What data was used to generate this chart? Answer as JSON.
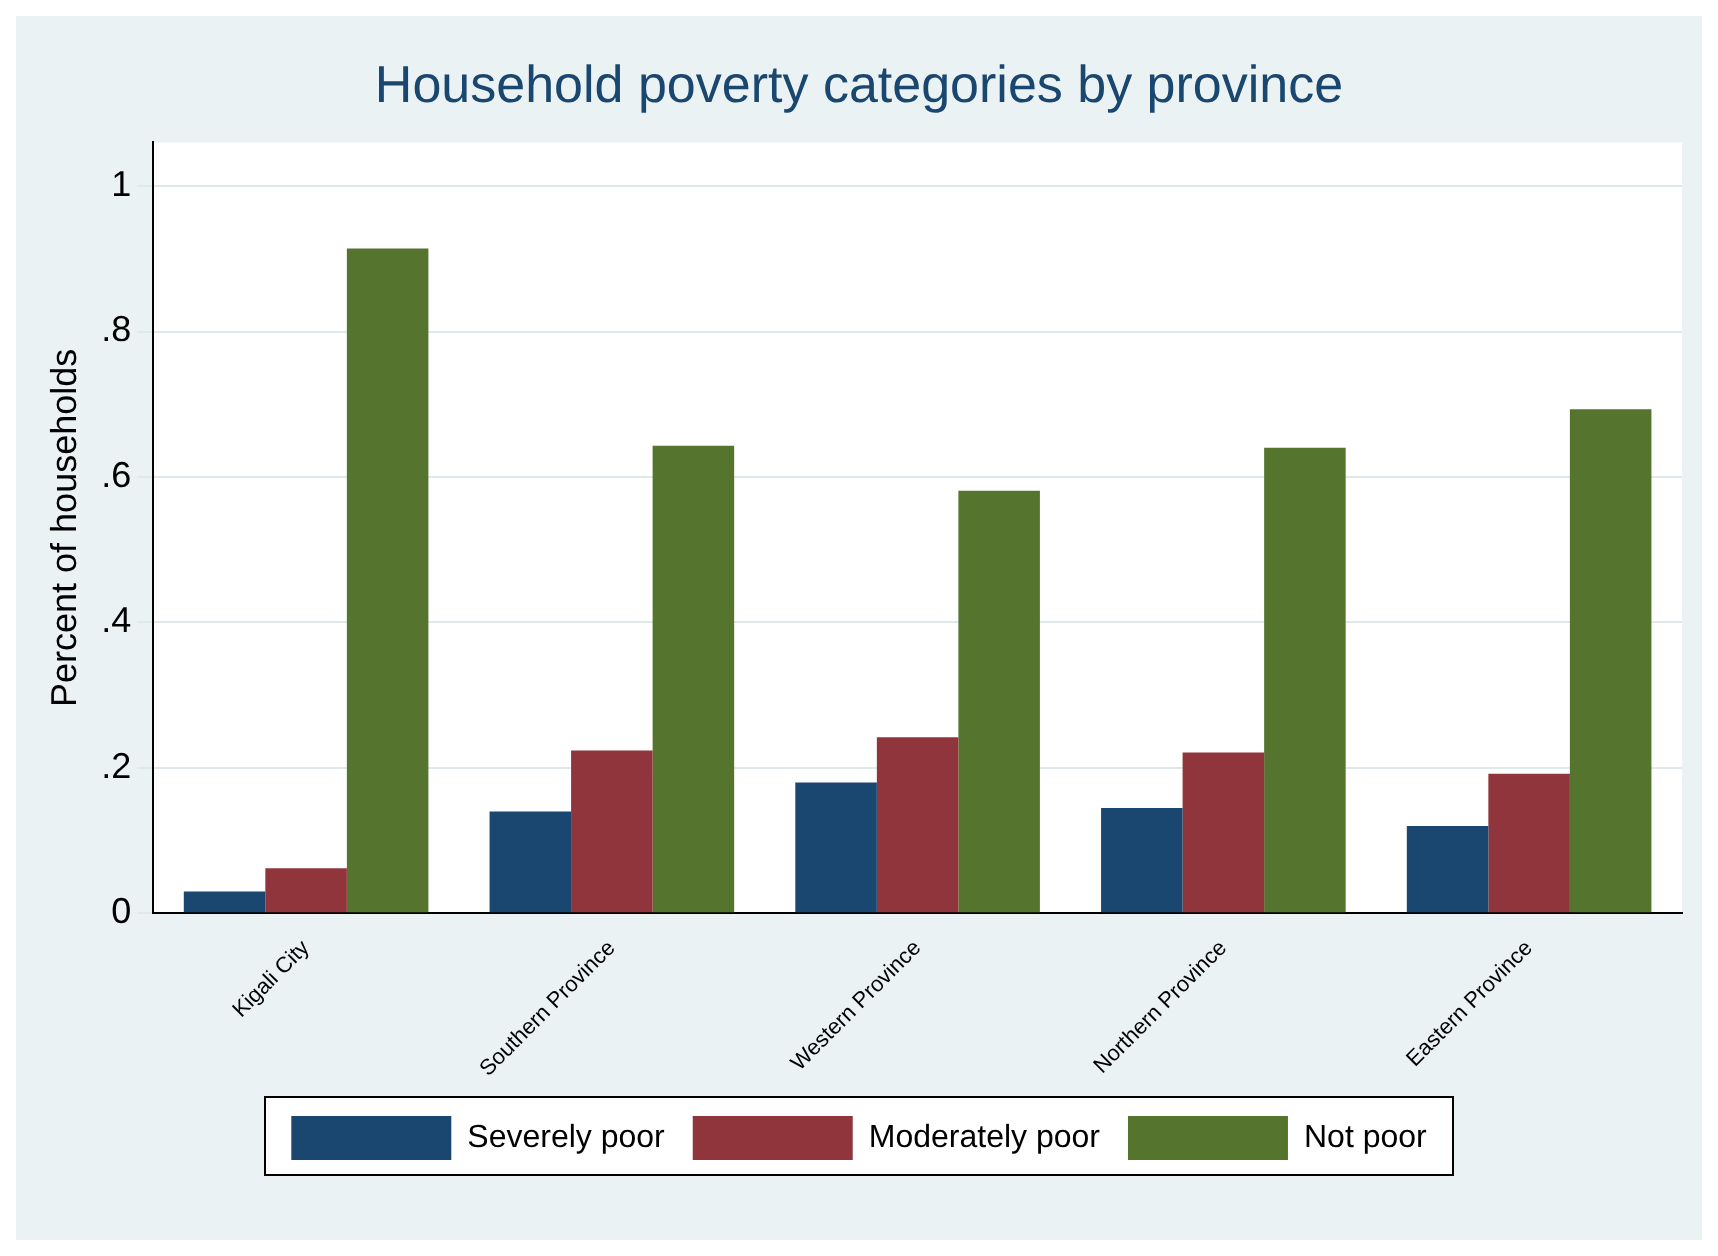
{
  "chart_data": {
    "type": "bar",
    "title": "Household poverty categories by province",
    "ylabel": "Percent of households",
    "categories": [
      "Kigali City",
      "Southern Province",
      "Western Province",
      "Northern Province",
      "Eastern Province"
    ],
    "series": [
      {
        "name": "Severely poor",
        "color": "#1a476f",
        "values": [
          0.03,
          0.14,
          0.18,
          0.145,
          0.12
        ]
      },
      {
        "name": "Moderately poor",
        "color": "#90353b",
        "values": [
          0.062,
          0.224,
          0.242,
          0.221,
          0.192
        ]
      },
      {
        "name": "Not poor",
        "color": "#55752f",
        "values": [
          0.914,
          0.643,
          0.581,
          0.64,
          0.693
        ]
      }
    ],
    "ylim": [
      0,
      1.06
    ],
    "yticks": [
      0,
      {
        "value": 0.2,
        "label": ".2"
      },
      {
        "value": 0.4,
        "label": ".4"
      },
      {
        "value": 0.6,
        "label": ".6"
      },
      {
        "value": 0.8,
        "label": ".8"
      },
      1
    ],
    "grid": "y",
    "legend": "bottom"
  }
}
